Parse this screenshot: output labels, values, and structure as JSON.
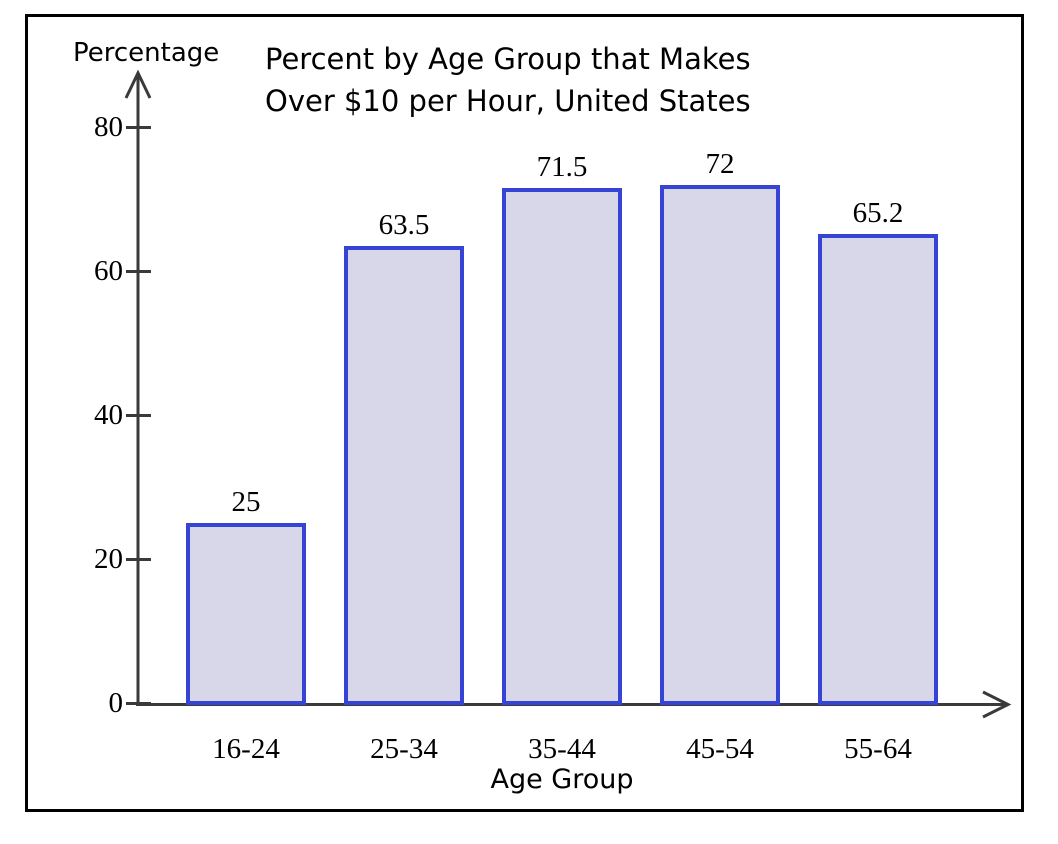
{
  "chart_data": {
    "type": "bar",
    "title_lines": [
      "Percent by Age Group that Makes",
      "Over $10 per Hour, United States"
    ],
    "categories": [
      "16-24",
      "25-34",
      "35-44",
      "45-54",
      "55-64"
    ],
    "values": [
      25,
      63.5,
      71.5,
      72,
      65.2
    ],
    "value_labels": [
      "25",
      "63.5",
      "71.5",
      "72",
      "65.2"
    ],
    "xlabel": "Age Group",
    "ylabel": "Percentage",
    "yticks": [
      0,
      20,
      40,
      60,
      80
    ],
    "ytick_labels": [
      "0",
      "20",
      "40",
      "60",
      "80"
    ],
    "ylim": [
      0,
      87
    ],
    "grid": false,
    "legend": null,
    "colors": {
      "bar_fill": "#d7d7e9",
      "bar_border": "#3544d4",
      "axis": "#3a3a3a",
      "text": "#000000",
      "frame_border": "#000000",
      "background": "#ffffff"
    }
  }
}
